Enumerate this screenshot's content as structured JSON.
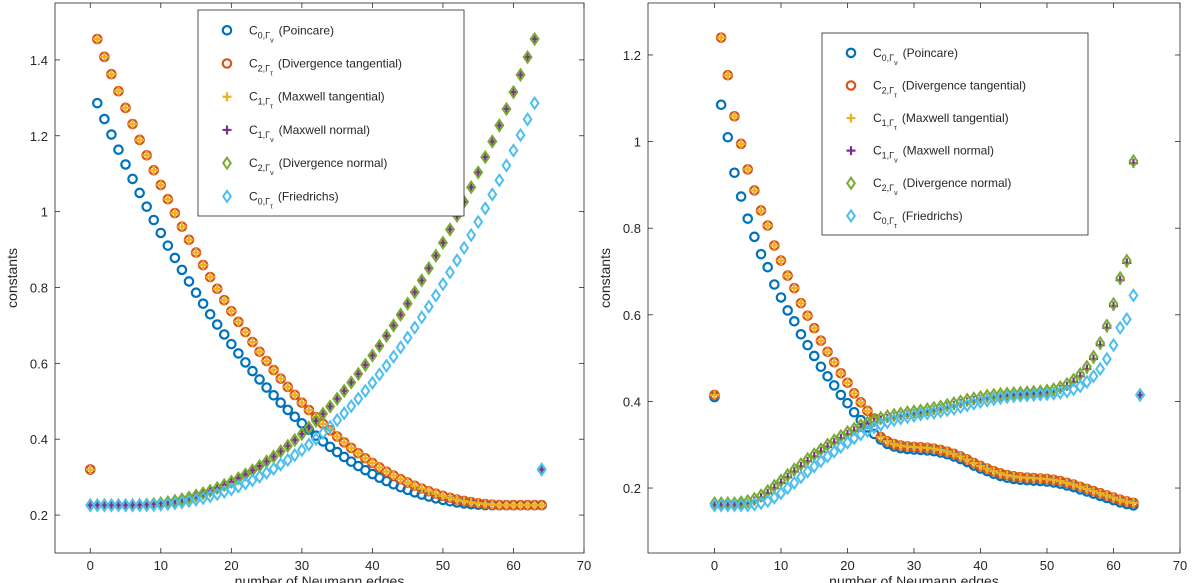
{
  "chart_data": [
    {
      "type": "scatter",
      "xlabel": "number of Neumann edges",
      "ylabel": "constants",
      "xlim": [
        -5,
        70
      ],
      "ylim": [
        0.1,
        1.55
      ],
      "xticks": [
        0,
        10,
        20,
        30,
        40,
        50,
        60,
        70
      ],
      "yticks": [
        0.2,
        0.4,
        0.6,
        0.8,
        1,
        1.2,
        1.4
      ],
      "grid": false,
      "legend_position": "top-center",
      "series": [
        {
          "name": "C_{0,Γ_ν} (Poincare)",
          "marker": "circle",
          "color": "#0072BD",
          "decreasing": {
            "x0": 1,
            "y0": 1.286,
            "y_tail": 0.226,
            "xs": 57
          },
          "first_point": [
            0,
            0.32
          ],
          "increasing": null
        },
        {
          "name": "C_{2,Γ_τ} (Divergence tangential)",
          "marker": "circle",
          "color": "#D95319",
          "decreasing": {
            "x0": 1,
            "y0": 1.455,
            "y_tail": 0.226,
            "xs": 59
          },
          "first_point": [
            0,
            0.32
          ],
          "increasing": null
        },
        {
          "name": "C_{1,Γ_τ} (Maxwell tangential)",
          "marker": "plus",
          "color": "#EDB120",
          "decreasing": {
            "x0": 1,
            "y0": 1.455,
            "y_tail": 0.226,
            "xs": 59
          },
          "first_point": [
            0,
            0.32
          ],
          "increasing": null
        },
        {
          "name": "C_{1,Γ_ν} (Maxwell normal)",
          "marker": "plus",
          "color": "#7E2F8E",
          "increasing": {
            "x_end": 63,
            "y_start": 0.226,
            "y_end": 1.455,
            "xs": 6
          },
          "last_point": [
            64,
            0.32
          ],
          "decreasing": null
        },
        {
          "name": "C_{2,Γ_ν} (Divergence normal)",
          "marker": "diamond",
          "color": "#77AC30",
          "increasing": {
            "x_end": 63,
            "y_start": 0.226,
            "y_end": 1.455,
            "xs": 6
          },
          "last_point": [
            64,
            0.32
          ],
          "decreasing": null
        },
        {
          "name": "C_{0,Γ_τ} (Friedrichs)",
          "marker": "diamond",
          "color": "#4DBEEE",
          "increasing": {
            "x_end": 63,
            "y_start": 0.226,
            "y_end": 1.286,
            "xs": 8
          },
          "last_point": [
            64,
            0.32
          ],
          "decreasing": null
        }
      ]
    },
    {
      "type": "scatter",
      "xlabel": "number of Neumann edges",
      "ylabel": "constants",
      "xlim": [
        -10,
        70
      ],
      "ylim": [
        0.05,
        1.32
      ],
      "xticks": [
        0,
        10,
        20,
        30,
        40,
        50,
        60,
        70
      ],
      "yticks": [
        0.2,
        0.4,
        0.6,
        0.8,
        1,
        1.2
      ],
      "grid": false,
      "legend_position": "top-right",
      "series": [
        {
          "name": "C_{0,Γ_ν} (Poincare)",
          "marker": "circle",
          "color": "#0072BD",
          "points_decreasing": [
            [
              1,
              1.085
            ],
            [
              2,
              1.01
            ],
            [
              3,
              0.928
            ],
            [
              4,
              0.873
            ],
            [
              5,
              0.822
            ],
            [
              6,
              0.78
            ],
            [
              7,
              0.74
            ],
            [
              8,
              0.71
            ],
            [
              9,
              0.67
            ],
            [
              10,
              0.64
            ],
            [
              11,
              0.61
            ],
            [
              12,
              0.585
            ],
            [
              13,
              0.555
            ],
            [
              14,
              0.53
            ],
            [
              15,
              0.505
            ],
            [
              16,
              0.48
            ],
            [
              17,
              0.458
            ],
            [
              18,
              0.437
            ],
            [
              19,
              0.415
            ],
            [
              20,
              0.396
            ],
            [
              21,
              0.375
            ],
            [
              22,
              0.357
            ],
            [
              23,
              0.34
            ],
            [
              24,
              0.325
            ],
            [
              25,
              0.312
            ],
            [
              26,
              0.302
            ],
            [
              27,
              0.296
            ],
            [
              28,
              0.292
            ],
            [
              29,
              0.29
            ],
            [
              30,
              0.289
            ],
            [
              31,
              0.288
            ],
            [
              32,
              0.287
            ],
            [
              33,
              0.285
            ],
            [
              34,
              0.282
            ],
            [
              35,
              0.278
            ],
            [
              36,
              0.273
            ],
            [
              37,
              0.267
            ],
            [
              38,
              0.26
            ],
            [
              39,
              0.252
            ],
            [
              40,
              0.245
            ],
            [
              41,
              0.239
            ],
            [
              42,
              0.233
            ],
            [
              43,
              0.228
            ],
            [
              44,
              0.224
            ],
            [
              45,
              0.221
            ],
            [
              46,
              0.219
            ],
            [
              47,
              0.218
            ],
            [
              48,
              0.217
            ],
            [
              49,
              0.216
            ],
            [
              50,
              0.215
            ],
            [
              51,
              0.213
            ],
            [
              52,
              0.21
            ],
            [
              53,
              0.206
            ],
            [
              54,
              0.202
            ],
            [
              55,
              0.197
            ],
            [
              56,
              0.192
            ],
            [
              57,
              0.187
            ],
            [
              58,
              0.182
            ],
            [
              59,
              0.177
            ],
            [
              60,
              0.172
            ],
            [
              61,
              0.167
            ],
            [
              62,
              0.163
            ],
            [
              63,
              0.16
            ]
          ],
          "extra_points": [
            [
              0,
              0.41
            ]
          ]
        },
        {
          "name": "C_{2,Γ_τ} (Divergence tangential)",
          "marker": "circle",
          "color": "#D95319",
          "points_decreasing_shift": 0.01,
          "scale_top": 1.23,
          "extra_points": [
            [
              0,
              0.415
            ]
          ]
        },
        {
          "name": "C_{1,Γ_τ} (Maxwell tangential)",
          "marker": "plus",
          "color": "#EDB120",
          "points_decreasing_shift": 0.01,
          "scale_top": 1.23,
          "extra_points": [
            [
              0,
              0.415
            ]
          ]
        },
        {
          "name": "C_{1,Γ_ν} (Maxwell normal)",
          "marker": "plus",
          "color": "#7E2F8E",
          "points_increasing": [
            [
              0,
              0.16
            ],
            [
              1,
              0.16
            ],
            [
              2,
              0.16
            ],
            [
              3,
              0.16
            ],
            [
              4,
              0.162
            ],
            [
              5,
              0.165
            ],
            [
              6,
              0.17
            ],
            [
              7,
              0.178
            ],
            [
              8,
              0.188
            ],
            [
              9,
              0.2
            ],
            [
              10,
              0.212
            ],
            [
              11,
              0.225
            ],
            [
              12,
              0.238
            ],
            [
              13,
              0.25
            ],
            [
              14,
              0.262
            ],
            [
              15,
              0.273
            ],
            [
              16,
              0.284
            ],
            [
              17,
              0.295
            ],
            [
              18,
              0.305
            ],
            [
              19,
              0.315
            ],
            [
              20,
              0.324
            ],
            [
              21,
              0.332
            ],
            [
              22,
              0.34
            ],
            [
              23,
              0.346
            ],
            [
              24,
              0.352
            ],
            [
              25,
              0.357
            ],
            [
              26,
              0.361
            ],
            [
              27,
              0.364
            ],
            [
              28,
              0.367
            ],
            [
              29,
              0.37
            ],
            [
              30,
              0.372
            ],
            [
              31,
              0.374
            ],
            [
              32,
              0.377
            ],
            [
              33,
              0.38
            ],
            [
              34,
              0.383
            ],
            [
              35,
              0.387
            ],
            [
              36,
              0.391
            ],
            [
              37,
              0.395
            ],
            [
              38,
              0.399
            ],
            [
              39,
              0.402
            ],
            [
              40,
              0.405
            ],
            [
              41,
              0.408
            ],
            [
              42,
              0.41
            ],
            [
              43,
              0.412
            ],
            [
              44,
              0.413
            ],
            [
              45,
              0.414
            ],
            [
              46,
              0.415
            ],
            [
              47,
              0.416
            ],
            [
              48,
              0.417
            ],
            [
              49,
              0.418
            ],
            [
              50,
              0.42
            ],
            [
              51,
              0.423
            ],
            [
              52,
              0.428
            ],
            [
              53,
              0.435
            ],
            [
              54,
              0.445
            ],
            [
              55,
              0.458
            ],
            [
              56,
              0.475
            ],
            [
              57,
              0.498
            ],
            [
              58,
              0.53
            ],
            [
              59,
              0.57
            ],
            [
              60,
              0.62
            ],
            [
              61,
              0.68
            ],
            [
              62,
              0.72
            ],
            [
              63,
              0.95
            ]
          ],
          "extra_points": [
            [
              64,
              0.415
            ]
          ]
        },
        {
          "name": "C_{2,Γ_ν} (Divergence normal)",
          "marker": "diamond",
          "color": "#77AC30",
          "shift": 0.005,
          "extra_points": [
            [
              64,
              0.415
            ]
          ]
        },
        {
          "name": "C_{0,Γ_τ} (Friedrichs)",
          "marker": "diamond",
          "color": "#4DBEEE",
          "lag": 2,
          "extra_points": [
            [
              64,
              0.415
            ]
          ]
        }
      ]
    }
  ],
  "legend": [
    {
      "main": "C",
      "sub": "0,Γ",
      "subsub": "ν",
      "text": "(Poincare)"
    },
    {
      "main": "C",
      "sub": "2,Γ",
      "subsub": "τ",
      "text": "(Divergence tangential)"
    },
    {
      "main": "C",
      "sub": "1,Γ",
      "subsub": "τ",
      "text": "(Maxwell tangential)"
    },
    {
      "main": "C",
      "sub": "1,Γ",
      "subsub": "ν",
      "text": "(Maxwell normal)"
    },
    {
      "main": "C",
      "sub": "2,Γ",
      "subsub": "ν",
      "text": "(Divergence normal)"
    },
    {
      "main": "C",
      "sub": "0,Γ",
      "subsub": "τ",
      "text": "(Friedrichs)"
    }
  ]
}
